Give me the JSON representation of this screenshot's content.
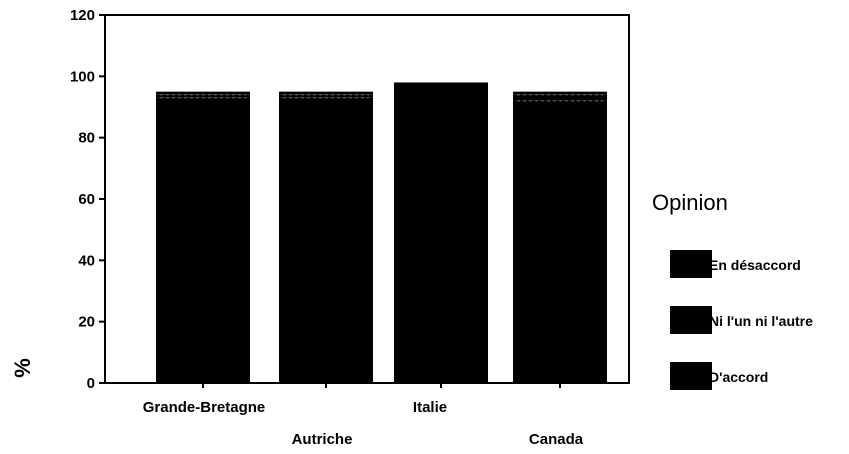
{
  "chart_data": {
    "type": "bar",
    "stacked": true,
    "categories": [
      "Grande-Bretagne",
      "Autriche",
      "Italie",
      "Canada"
    ],
    "series": [
      {
        "name": "D'accord",
        "values": [
          93,
          93,
          98,
          92
        ]
      },
      {
        "name": "Ni l'un ni l'autre",
        "values": [
          1,
          1,
          0,
          2
        ]
      },
      {
        "name": "En désaccord",
        "values": [
          1,
          1,
          0,
          1
        ]
      }
    ],
    "ylabel": "%",
    "xlabel": "",
    "ylim": [
      0,
      120
    ],
    "yticks": [
      0,
      20,
      40,
      60,
      80,
      100,
      120
    ],
    "legend": {
      "title": "Opinion",
      "entries": [
        "En désaccord",
        "Ni l'un ni l'autre",
        "D'accord"
      ],
      "placement": "right"
    },
    "grid": false,
    "bar_color": "#000000"
  }
}
